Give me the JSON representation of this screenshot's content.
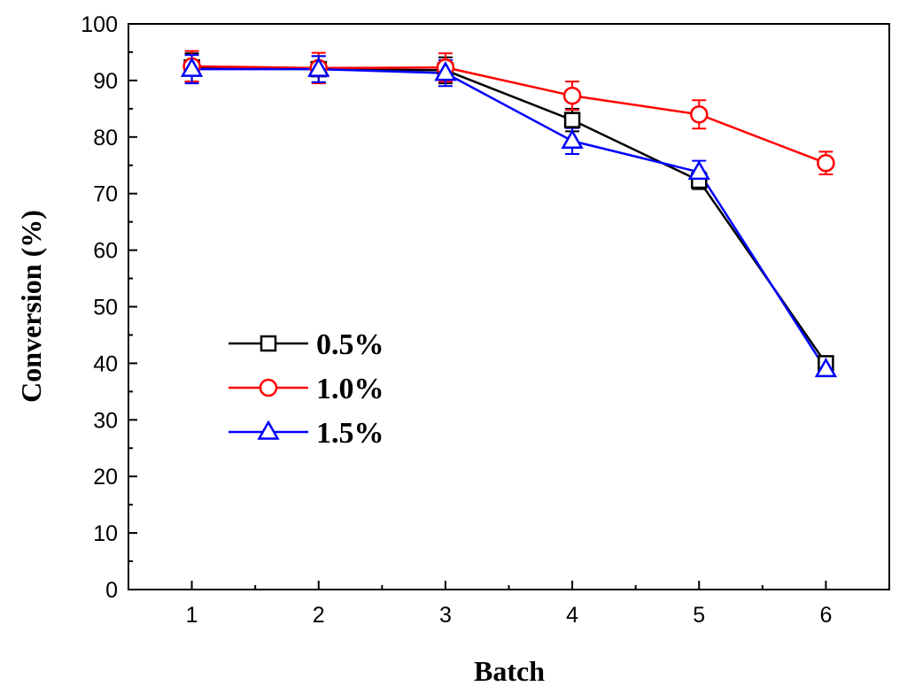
{
  "chart_data": {
    "type": "line",
    "title": "",
    "xlabel": "Batch",
    "ylabel": "Conversion (%)",
    "x": [
      1,
      2,
      3,
      4,
      5,
      6
    ],
    "xlim": [
      0.5,
      6.5
    ],
    "ylim": [
      0,
      100
    ],
    "xticks": [
      "1",
      "2",
      "3",
      "4",
      "5",
      "6"
    ],
    "yticks": [
      "0",
      "10",
      "20",
      "30",
      "40",
      "50",
      "60",
      "70",
      "80",
      "90",
      "100"
    ],
    "grid": false,
    "legend_position": "center-left",
    "series": [
      {
        "name": "0.5%",
        "marker": "square",
        "color": "#000000",
        "values": [
          92.3,
          92.0,
          91.8,
          83.0,
          72.3,
          40.0
        ],
        "errors": [
          2.5,
          2.3,
          2.3,
          2.0,
          1.5,
          1.0
        ]
      },
      {
        "name": "1.0%",
        "marker": "circle",
        "color": "#ff0000",
        "values": [
          92.5,
          92.2,
          92.3,
          87.3,
          84.0,
          75.4
        ],
        "errors": [
          2.7,
          2.7,
          2.5,
          2.5,
          2.5,
          2.0
        ]
      },
      {
        "name": "1.5%",
        "marker": "triangle",
        "color": "#0000ff",
        "values": [
          92.0,
          92.0,
          91.3,
          79.3,
          73.8,
          38.9
        ],
        "errors": [
          2.5,
          2.3,
          2.3,
          2.3,
          2.0,
          1.0
        ]
      }
    ]
  }
}
